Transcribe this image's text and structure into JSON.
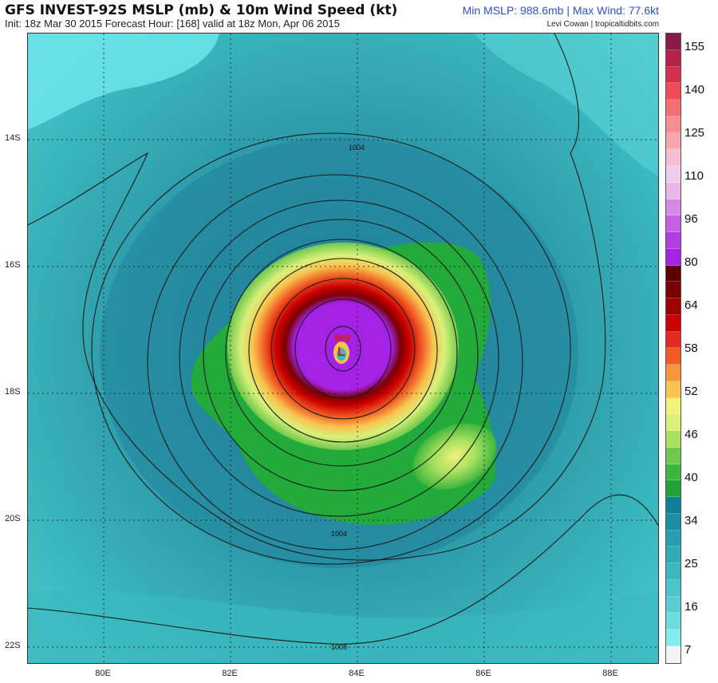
{
  "header": {
    "title": "GFS INVEST-92S MSLP (mb) & 10m Wind Speed (kt)",
    "init_line": "Init: 18z Mar 30 2015   Forecast Hour: [168]   valid at 18z Mon, Apr 06 2015",
    "stats": "Min MSLP: 988.6mb | Max Wind: 77.6kt",
    "credit": "Levi Cowan | tropicaltidbits.com"
  },
  "map": {
    "lat_labels": [
      "14S",
      "16S",
      "18S",
      "20S",
      "22S"
    ],
    "lon_labels": [
      "80E",
      "82E",
      "84E",
      "86E",
      "88E"
    ],
    "contour_labels": [
      "1004",
      "1004",
      "1008"
    ],
    "center_pressure": "989",
    "low_marker": "L",
    "colors": {
      "calm": "#6fe9ec",
      "teal": "#3bb9bf",
      "deep_teal": "#1f7f9a",
      "green": "#22aa3a",
      "yellow": "#f2f277",
      "red": "#e62a22",
      "purple": "#a322e6",
      "isobar": "#1a1a1a"
    }
  },
  "colorbar": {
    "ticks": [
      "155",
      "140",
      "125",
      "110",
      "96",
      "80",
      "64",
      "58",
      "52",
      "46",
      "40",
      "34",
      "25",
      "16",
      "7"
    ],
    "colors": [
      "#8b1a4a",
      "#b8204a",
      "#d6304f",
      "#ee4b56",
      "#f36f73",
      "#f58d93",
      "#f7a6ae",
      "#f6bdd3",
      "#f0cdea",
      "#e9b6ea",
      "#d58ae8",
      "#c45fe6",
      "#b33ce6",
      "#a322e6",
      "#5c0000",
      "#7a0000",
      "#a00000",
      "#cc0000",
      "#e62a22",
      "#f05a24",
      "#f5963a",
      "#f8c44e",
      "#f2f277",
      "#d9f07a",
      "#a8e060",
      "#6fc84c",
      "#3db63c",
      "#22a236",
      "#0f7f9a",
      "#1a8ea5",
      "#279db0",
      "#32abb9",
      "#3cb7c0",
      "#49c4c9",
      "#57cfd1",
      "#6bdcdc",
      "#84ecec",
      "#f4f4f4"
    ]
  }
}
